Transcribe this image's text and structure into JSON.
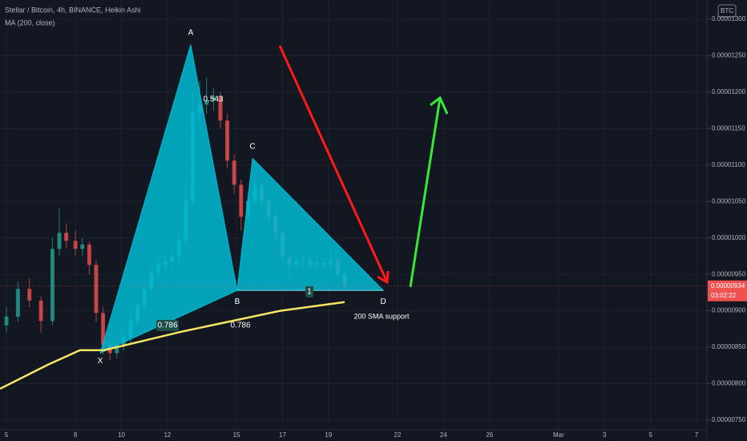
{
  "chart_data": {
    "type": "candlestick",
    "title": "Stellar / Bitcoin, 4h, BINANCE, Heikin Ashi",
    "indicator_label": "MA (200, close)",
    "currency_badge": "BTC",
    "up_color": "#26a69a",
    "down_color": "#ef5350",
    "grid": true,
    "xlim": [
      4.72,
      35.45
    ],
    "xticks": [
      5,
      8,
      10,
      12,
      15,
      17,
      19,
      22,
      24,
      26,
      {
        "value": 29,
        "label": "Mar"
      },
      {
        "value": 31,
        "label": "3"
      },
      {
        "value": 33,
        "label": "5"
      },
      {
        "value": 35,
        "label": "7"
      }
    ],
    "ylim": [
      7.5e-06,
      1.3e-05
    ],
    "yticks": [
      {
        "value": 7.5e-06,
        "label": "0.00000750"
      },
      {
        "value": 8e-06,
        "label": "0.00000800"
      },
      {
        "value": 8.5e-06,
        "label": "0.00000850"
      },
      {
        "value": 9e-06,
        "label": "0.00000900"
      },
      {
        "value": 9.5e-06,
        "label": "0.00000950"
      },
      {
        "value": 1e-05,
        "label": "0.00001000"
      },
      {
        "value": 1.05e-05,
        "label": "0.00001050"
      },
      {
        "value": 1.1e-05,
        "label": "0.00001100"
      },
      {
        "value": 1.15e-05,
        "label": "0.00001150"
      },
      {
        "value": 1.2e-05,
        "label": "0.00001200"
      },
      {
        "value": 1.25e-05,
        "label": "0.00001250"
      },
      {
        "value": 1.3e-05,
        "label": "0.00001300"
      }
    ],
    "candles": {
      "x": [
        5.0,
        5.5,
        6.0,
        6.5,
        7.0,
        7.3,
        7.6,
        8.0,
        8.3,
        8.6,
        8.9,
        9.2,
        9.5,
        9.8,
        10.1,
        10.4,
        10.7,
        11.0,
        11.3,
        11.6,
        11.9,
        12.2,
        12.5,
        12.8,
        13.1,
        13.4,
        13.7,
        14.0,
        14.3,
        14.6,
        14.9,
        15.2,
        15.5,
        15.8,
        16.1,
        16.4,
        16.7,
        17.0,
        17.3,
        17.6,
        17.9,
        18.2,
        18.5,
        18.8,
        19.1,
        19.4,
        19.7
      ],
      "open": [
        8.8e-06,
        8.92e-06,
        9.3e-06,
        9.14e-06,
        8.86e-06,
        9.85e-06,
        1.007e-05,
        9.96e-06,
        9.85e-06,
        9.91e-06,
        9.63e-06,
        8.97e-06,
        8.53e-06,
        8.42e-06,
        8.53e-06,
        8.64e-06,
        8.86e-06,
        9.08e-06,
        9.3e-06,
        9.52e-06,
        9.63e-06,
        9.68e-06,
        9.74e-06,
        9.96e-06,
        1.051e-05,
        1.172e-05,
        1.183e-05,
        1.189e-05,
        1.194e-05,
        1.161e-05,
        1.106e-05,
        1.073e-05,
        1.029e-05,
        1.051e-05,
        1.073e-05,
        1.051e-05,
        1.029e-05,
        1.007e-05,
        9.74e-06,
        9.63e-06,
        9.68e-06,
        9.69e-06,
        9.63e-06,
        9.66e-06,
        9.63e-06,
        9.69e-06,
        9.5e-06
      ],
      "high": [
        9.05e-06,
        9.4e-06,
        9.45e-06,
        9.2e-06,
        1e-05,
        1.04e-05,
        1.02e-05,
        1.01e-05,
        1e-05,
        9.95e-06,
        9.7e-06,
        9.05e-06,
        8.6e-06,
        8.6e-06,
        8.72e-06,
        8.95e-06,
        9.15e-06,
        9.4e-06,
        9.6e-06,
        9.75e-06,
        9.8e-06,
        9.85e-06,
        1.005e-05,
        1.08e-05,
        1.2e-05,
        1.215e-05,
        1.22e-05,
        1.205e-05,
        1.2e-05,
        1.17e-05,
        1.115e-05,
        1.08e-05,
        1.06e-05,
        1.09e-05,
        1.08e-05,
        1.058e-05,
        1.035e-05,
        1.012e-05,
        9.8e-06,
        9.75e-06,
        9.78e-06,
        9.75e-06,
        9.75e-06,
        9.72e-06,
        9.9e-06,
        9.75e-06,
        9.58e-06
      ],
      "low": [
        8.7e-06,
        8.85e-06,
        9.05e-06,
        8.7e-06,
        8.8e-06,
        9.75e-06,
        9.85e-06,
        9.75e-06,
        9.75e-06,
        9.5e-06,
        8.85e-06,
        8.4e-06,
        8.32e-06,
        8.35e-06,
        8.45e-06,
        8.55e-06,
        8.78e-06,
        9e-06,
        9.2e-06,
        9.45e-06,
        9.5e-06,
        9.6e-06,
        9.65e-06,
        9.9e-06,
        1.045e-05,
        1.16e-05,
        1.17e-05,
        1.175e-05,
        1.15e-05,
        1.095e-05,
        1.06e-05,
        1.01e-05,
        1.02e-05,
        1.045e-05,
        1.04e-05,
        1.02e-05,
        9.95e-06,
        9.65e-06,
        9.45e-06,
        9.55e-06,
        9.58e-06,
        9.55e-06,
        9.58e-06,
        9.55e-06,
        9.58e-06,
        9.45e-06,
        9.3e-06
      ],
      "close": [
        8.92e-06,
        9.3e-06,
        9.14e-06,
        8.86e-06,
        9.85e-06,
        1.007e-05,
        9.96e-06,
        9.85e-06,
        9.91e-06,
        9.63e-06,
        8.97e-06,
        8.53e-06,
        8.42e-06,
        8.53e-06,
        8.64e-06,
        8.86e-06,
        9.08e-06,
        9.3e-06,
        9.52e-06,
        9.63e-06,
        9.68e-06,
        9.74e-06,
        9.96e-06,
        1.051e-05,
        1.172e-05,
        1.183e-05,
        1.189e-05,
        1.194e-05,
        1.161e-05,
        1.106e-05,
        1.073e-05,
        1.029e-05,
        1.051e-05,
        1.073e-05,
        1.051e-05,
        1.029e-05,
        1.007e-05,
        9.74e-06,
        9.63e-06,
        9.68e-06,
        9.69e-06,
        9.63e-06,
        9.66e-06,
        9.63e-06,
        9.69e-06,
        9.5e-06,
        9.34e-06
      ]
    },
    "ma": {
      "color": "#f5e663",
      "x": [
        4.72,
        6.8,
        8.2,
        9.25,
        10.97,
        12.7,
        14.8,
        16.9,
        19.7
      ],
      "values": [
        7.93e-06,
        8.26e-06,
        8.46e-06,
        8.46e-06,
        8.59e-06,
        8.72e-06,
        8.86e-06,
        9e-06,
        9.12e-06
      ]
    },
    "pattern": {
      "color": "#00bcd4",
      "points": [
        {
          "label": "X",
          "x": 9.08,
          "value": 8.42e-06
        },
        {
          "label": "A",
          "x": 13.01,
          "value": 1.265e-05
        },
        {
          "label": "B",
          "x": 15.03,
          "value": 9.28e-06
        },
        {
          "label": "C",
          "x": 15.7,
          "value": 1.109e-05
        },
        {
          "label": "D",
          "x": 21.38,
          "value": 9.28e-06
        }
      ],
      "ratios": [
        0.543,
        0.786,
        0.786,
        1
      ]
    },
    "annotation": "200 SMA support",
    "last_price": {
      "value": 9.34e-06,
      "label": "0.00000934"
    },
    "countdown": "03:02:22"
  }
}
